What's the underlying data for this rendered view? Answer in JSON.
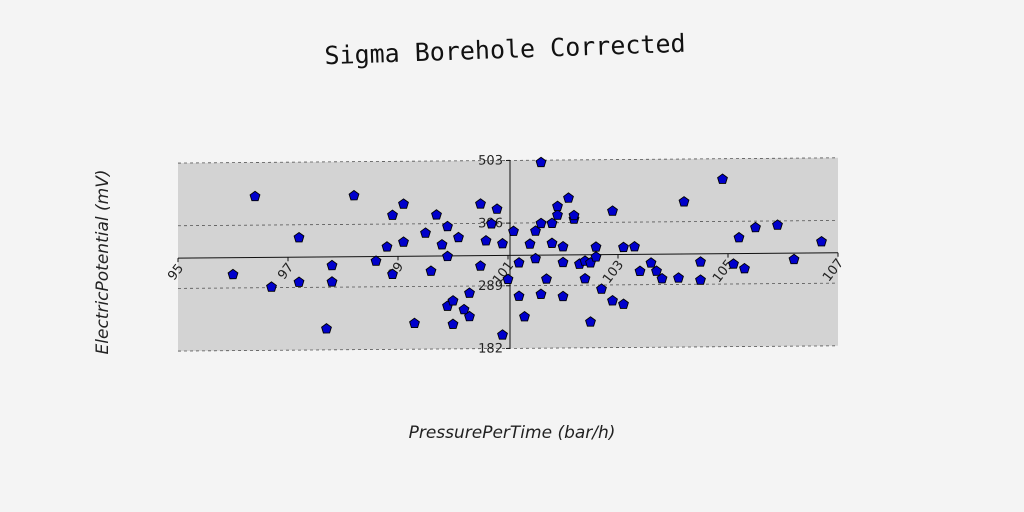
{
  "chart_data": {
    "type": "scatter",
    "title": "Sigma Borehole Corrected",
    "xlabel": "PressurePerTime (bar/h)",
    "ylabel": "ElectricPotential (mV)",
    "xlim": [
      95,
      107
    ],
    "ylim": [
      182,
      503
    ],
    "xticks": [
      95,
      97,
      99,
      101,
      103,
      105,
      107
    ],
    "xtick_labels": [
      "95",
      "97",
      "99",
      "101",
      "103",
      "105",
      "107"
    ],
    "yticks": [
      182,
      289,
      396,
      503
    ],
    "ytick_labels": [
      "182",
      "289",
      "396",
      "503"
    ],
    "grid": "horizontal-dashed",
    "marker": "pentagon",
    "colors": {
      "marker_fill": "#0000cc",
      "marker_edge": "#000000",
      "plot_bg": "#d3d3d3",
      "page_bg": "#f4f4f4"
    },
    "points": [
      [
        96.0,
        312
      ],
      [
        96.4,
        445
      ],
      [
        96.7,
        290
      ],
      [
        97.2,
        374
      ],
      [
        97.2,
        298
      ],
      [
        97.7,
        218
      ],
      [
        97.8,
        326
      ],
      [
        97.8,
        298
      ],
      [
        98.2,
        445
      ],
      [
        98.6,
        333
      ],
      [
        98.8,
        357
      ],
      [
        98.9,
        411
      ],
      [
        99.1,
        430
      ],
      [
        98.9,
        310
      ],
      [
        99.1,
        365
      ],
      [
        99.3,
        226
      ],
      [
        99.5,
        380
      ],
      [
        99.6,
        315
      ],
      [
        99.7,
        411
      ],
      [
        99.8,
        360
      ],
      [
        99.9,
        255
      ],
      [
        99.9,
        340
      ],
      [
        100.0,
        264
      ],
      [
        99.9,
        391
      ],
      [
        100.0,
        224
      ],
      [
        100.1,
        372
      ],
      [
        100.2,
        249
      ],
      [
        100.3,
        277
      ],
      [
        100.3,
        237
      ],
      [
        100.5,
        429
      ],
      [
        100.5,
        323
      ],
      [
        100.6,
        366
      ],
      [
        100.7,
        395
      ],
      [
        100.9,
        361
      ],
      [
        100.9,
        205
      ],
      [
        100.8,
        420
      ],
      [
        101.0,
        300
      ],
      [
        101.1,
        382
      ],
      [
        101.2,
        271
      ],
      [
        101.2,
        328
      ],
      [
        101.3,
        236
      ],
      [
        101.4,
        360
      ],
      [
        101.5,
        382
      ],
      [
        101.5,
        335
      ],
      [
        101.6,
        274
      ],
      [
        101.6,
        395
      ],
      [
        101.6,
        499
      ],
      [
        101.7,
        300
      ],
      [
        101.8,
        395
      ],
      [
        101.8,
        361
      ],
      [
        101.9,
        409
      ],
      [
        101.9,
        424
      ],
      [
        102.0,
        270
      ],
      [
        102.0,
        355
      ],
      [
        102.0,
        328
      ],
      [
        102.2,
        402
      ],
      [
        102.1,
        438
      ],
      [
        102.2,
        408
      ],
      [
        102.3,
        325
      ],
      [
        102.4,
        330
      ],
      [
        102.4,
        300
      ],
      [
        102.5,
        327
      ],
      [
        102.5,
        226
      ],
      [
        102.6,
        354
      ],
      [
        102.6,
        337
      ],
      [
        102.7,
        282
      ],
      [
        102.9,
        415
      ],
      [
        102.9,
        262
      ],
      [
        103.1,
        353
      ],
      [
        103.1,
        256
      ],
      [
        103.3,
        354
      ],
      [
        103.4,
        312
      ],
      [
        103.6,
        326
      ],
      [
        103.7,
        312
      ],
      [
        103.8,
        299
      ],
      [
        104.1,
        300
      ],
      [
        104.2,
        430
      ],
      [
        104.5,
        296
      ],
      [
        104.5,
        327
      ],
      [
        104.9,
        468
      ],
      [
        105.1,
        323
      ],
      [
        105.2,
        368
      ],
      [
        105.3,
        315
      ],
      [
        105.5,
        385
      ],
      [
        105.9,
        389
      ],
      [
        106.2,
        330
      ],
      [
        106.7,
        360
      ]
    ]
  }
}
